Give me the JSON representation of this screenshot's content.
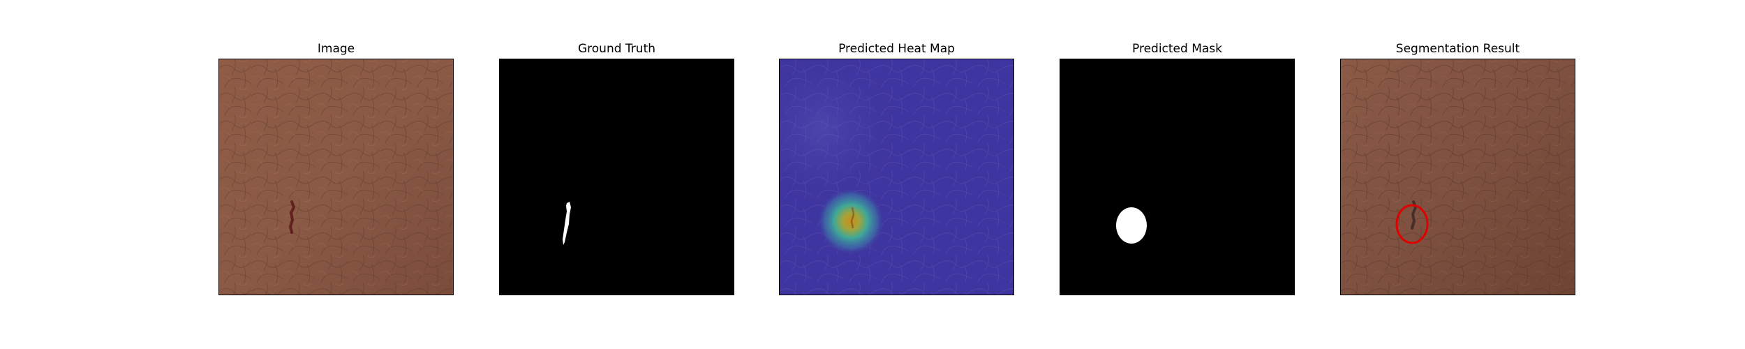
{
  "figure": {
    "panels": [
      {
        "title": "Image"
      },
      {
        "title": "Ground Truth"
      },
      {
        "title": "Predicted Heat Map"
      },
      {
        "title": "Predicted Mask"
      },
      {
        "title": "Segmentation Result"
      }
    ]
  },
  "colors": {
    "leather_base": "#8a5a46",
    "leather_light": "#9a6a55",
    "leather_dark": "#6e4433",
    "defect_mark": "#5a1818",
    "mask_background": "#000000",
    "mask_foreground": "#ffffff",
    "heat_low": "#3a2a9a",
    "heat_mid": "#3fae9c",
    "heat_high": "#d9a21f",
    "contour": "#e00000"
  }
}
